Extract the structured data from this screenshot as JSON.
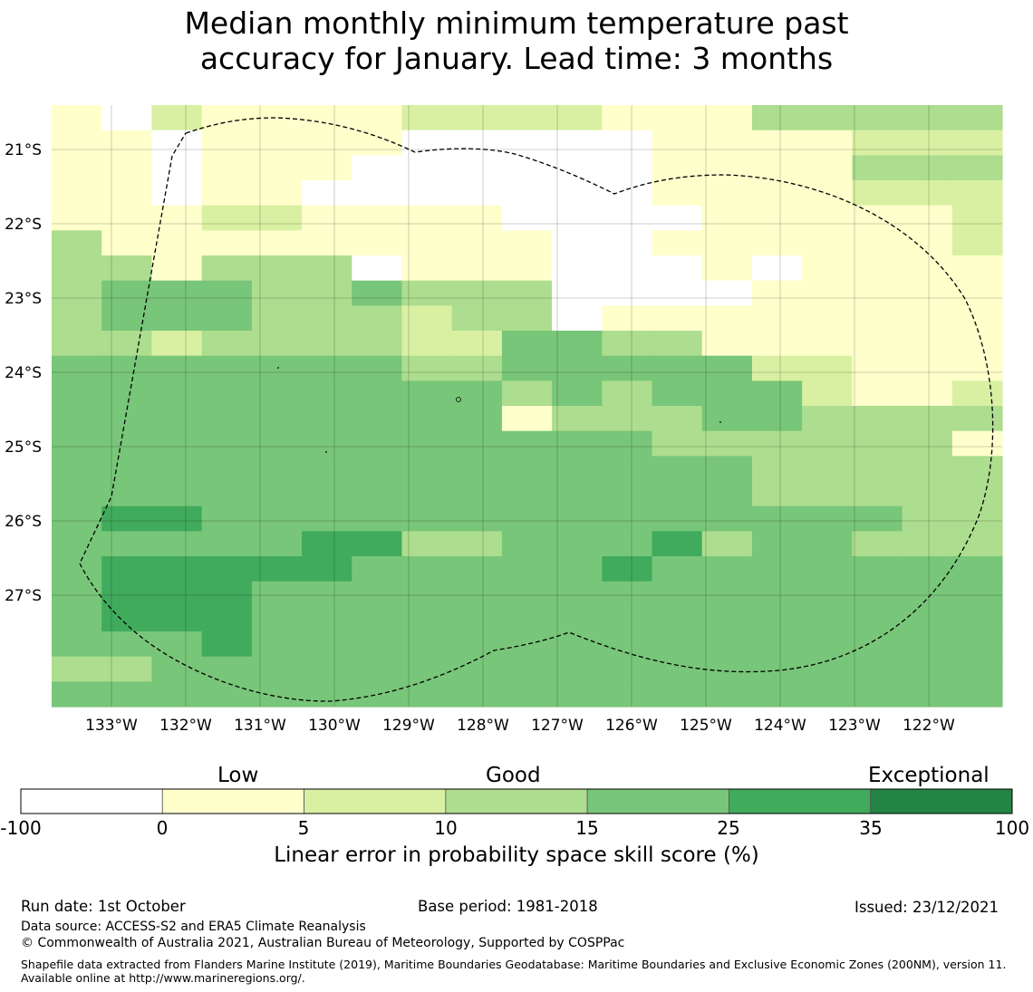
{
  "title": {
    "line1": "Median monthly minimum temperature past",
    "line2": "accuracy for January. Lead time: 3 months"
  },
  "map": {
    "x_labels": [
      "133°W",
      "132°W",
      "131°W",
      "130°W",
      "129°W",
      "128°W",
      "127°W",
      "126°W",
      "125°W",
      "124°W",
      "123°W",
      "122°W"
    ],
    "y_labels": [
      "21°S",
      "22°S",
      "23°S",
      "24°S",
      "25°S",
      "26°S",
      "27°S"
    ],
    "palette": [
      "#ffffff",
      "#ffffcc",
      "#d9f0a3",
      "#addd8e",
      "#78c679",
      "#41ab5d",
      "#238443"
    ],
    "grid_rows": [
      "1021111222211133333",
      "1101111000001111222",
      "1101110000001111333",
      "1101100000001111222",
      "1112211110000111112",
      "3111111111001111112",
      "3313330111000101111",
      "3444334333000011111",
      "3444333233011111111",
      "3323333224433111111",
      "4444444334444422111",
      "4444444443434442112",
      "4444444441333443333",
      "4444444444443333331",
      "4444444444444433333",
      "4444444444444433333",
      "4554444444444444433",
      "4444455334445344333",
      "4555554444454444444",
      "4555444444444444444",
      "4555444444444444444",
      "4445444444444444444",
      "3344444444444444444",
      "4444444444444444444"
    ]
  },
  "colorbar": {
    "categories": [
      "Low",
      "Good",
      "Exceptional"
    ],
    "ticks": [
      "-100",
      "0",
      "5",
      "10",
      "15",
      "25",
      "35",
      "100"
    ],
    "colors": [
      "#ffffff",
      "#ffffcc",
      "#d9f0a3",
      "#addd8e",
      "#78c679",
      "#41ab5d",
      "#238443"
    ],
    "label": "Linear error in probability space skill score (%)"
  },
  "footer": {
    "run_date": "Run date: 1st October",
    "base_period": "Base period: 1981-2018",
    "issued": "Issued: 23/12/2021",
    "data_source": "Data source: ACCESS-S2 and ERA5 Climate Reanalysis",
    "copyright": "© Commonwealth of Australia 2021, Australian Bureau of Meteorology, Supported by COSPPac",
    "shapefile": "Shapefile data extracted from Flanders Marine Institute (2019), Maritime Boundaries Geodatabase: Maritime Boundaries and Exclusive Economic Zones (200NM), version 11. Available online at http://www.marineregions.org/."
  }
}
